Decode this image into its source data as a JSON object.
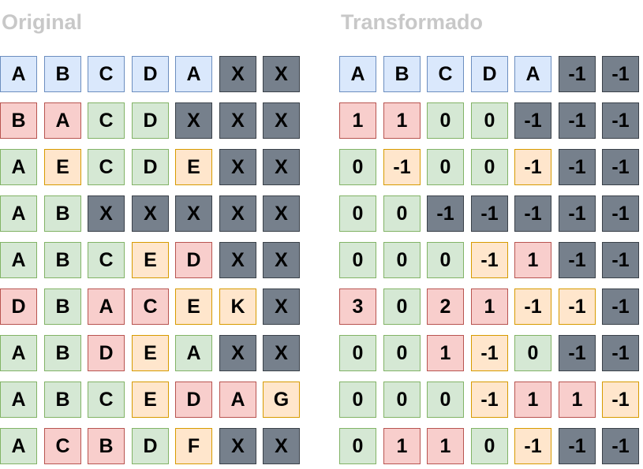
{
  "colors": {
    "blue": "#dae8fc",
    "red": "#f8cecc",
    "green": "#d5e8d4",
    "orange": "#ffe6cc",
    "gray": "#76808c",
    "title": "#c8c8c8"
  },
  "panels": [
    {
      "title": "Original",
      "rows": [
        [
          [
            "A",
            "blue"
          ],
          [
            "B",
            "blue"
          ],
          [
            "C",
            "blue"
          ],
          [
            "D",
            "blue"
          ],
          [
            "A",
            "blue"
          ],
          [
            "X",
            "gray"
          ],
          [
            "X",
            "gray"
          ]
        ],
        [
          [
            "B",
            "red"
          ],
          [
            "A",
            "red"
          ],
          [
            "C",
            "green"
          ],
          [
            "D",
            "green"
          ],
          [
            "X",
            "gray"
          ],
          [
            "X",
            "gray"
          ],
          [
            "X",
            "gray"
          ]
        ],
        [
          [
            "A",
            "green"
          ],
          [
            "E",
            "orange"
          ],
          [
            "C",
            "green"
          ],
          [
            "D",
            "green"
          ],
          [
            "E",
            "orange"
          ],
          [
            "X",
            "gray"
          ],
          [
            "X",
            "gray"
          ]
        ],
        [
          [
            "A",
            "green"
          ],
          [
            "B",
            "green"
          ],
          [
            "X",
            "gray"
          ],
          [
            "X",
            "gray"
          ],
          [
            "X",
            "gray"
          ],
          [
            "X",
            "gray"
          ],
          [
            "X",
            "gray"
          ]
        ],
        [
          [
            "A",
            "green"
          ],
          [
            "B",
            "green"
          ],
          [
            "C",
            "green"
          ],
          [
            "E",
            "orange"
          ],
          [
            "D",
            "red"
          ],
          [
            "X",
            "gray"
          ],
          [
            "X",
            "gray"
          ]
        ],
        [
          [
            "D",
            "red"
          ],
          [
            "B",
            "green"
          ],
          [
            "A",
            "red"
          ],
          [
            "C",
            "red"
          ],
          [
            "E",
            "orange"
          ],
          [
            "K",
            "orange"
          ],
          [
            "X",
            "gray"
          ]
        ],
        [
          [
            "A",
            "green"
          ],
          [
            "B",
            "green"
          ],
          [
            "D",
            "red"
          ],
          [
            "E",
            "orange"
          ],
          [
            "A",
            "green"
          ],
          [
            "X",
            "gray"
          ],
          [
            "X",
            "gray"
          ]
        ],
        [
          [
            "A",
            "green"
          ],
          [
            "B",
            "green"
          ],
          [
            "C",
            "green"
          ],
          [
            "E",
            "orange"
          ],
          [
            "D",
            "red"
          ],
          [
            "A",
            "red"
          ],
          [
            "G",
            "orange"
          ]
        ],
        [
          [
            "A",
            "green"
          ],
          [
            "C",
            "red"
          ],
          [
            "B",
            "red"
          ],
          [
            "D",
            "green"
          ],
          [
            "F",
            "orange"
          ],
          [
            "X",
            "gray"
          ],
          [
            "X",
            "gray"
          ]
        ]
      ]
    },
    {
      "title": "Transformado",
      "rows": [
        [
          [
            "A",
            "blue"
          ],
          [
            "B",
            "blue"
          ],
          [
            "C",
            "blue"
          ],
          [
            "D",
            "blue"
          ],
          [
            "A",
            "blue"
          ],
          [
            "-1",
            "gray"
          ],
          [
            "-1",
            "gray"
          ]
        ],
        [
          [
            "1",
            "red"
          ],
          [
            "1",
            "red"
          ],
          [
            "0",
            "green"
          ],
          [
            "0",
            "green"
          ],
          [
            "-1",
            "gray"
          ],
          [
            "-1",
            "gray"
          ],
          [
            "-1",
            "gray"
          ]
        ],
        [
          [
            "0",
            "green"
          ],
          [
            "-1",
            "orange"
          ],
          [
            "0",
            "green"
          ],
          [
            "0",
            "green"
          ],
          [
            "-1",
            "orange"
          ],
          [
            "-1",
            "gray"
          ],
          [
            "-1",
            "gray"
          ]
        ],
        [
          [
            "0",
            "green"
          ],
          [
            "0",
            "green"
          ],
          [
            "-1",
            "gray"
          ],
          [
            "-1",
            "gray"
          ],
          [
            "-1",
            "gray"
          ],
          [
            "-1",
            "gray"
          ],
          [
            "-1",
            "gray"
          ]
        ],
        [
          [
            "0",
            "green"
          ],
          [
            "0",
            "green"
          ],
          [
            "0",
            "green"
          ],
          [
            "-1",
            "orange"
          ],
          [
            "1",
            "red"
          ],
          [
            "-1",
            "gray"
          ],
          [
            "-1",
            "gray"
          ]
        ],
        [
          [
            "3",
            "red"
          ],
          [
            "0",
            "green"
          ],
          [
            "2",
            "red"
          ],
          [
            "1",
            "red"
          ],
          [
            "-1",
            "orange"
          ],
          [
            "-1",
            "orange"
          ],
          [
            "-1",
            "gray"
          ]
        ],
        [
          [
            "0",
            "green"
          ],
          [
            "0",
            "green"
          ],
          [
            "1",
            "red"
          ],
          [
            "-1",
            "orange"
          ],
          [
            "0",
            "green"
          ],
          [
            "-1",
            "gray"
          ],
          [
            "-1",
            "gray"
          ]
        ],
        [
          [
            "0",
            "green"
          ],
          [
            "0",
            "green"
          ],
          [
            "0",
            "green"
          ],
          [
            "-1",
            "orange"
          ],
          [
            "1",
            "red"
          ],
          [
            "1",
            "red"
          ],
          [
            "-1",
            "orange"
          ]
        ],
        [
          [
            "0",
            "green"
          ],
          [
            "1",
            "red"
          ],
          [
            "1",
            "red"
          ],
          [
            "0",
            "green"
          ],
          [
            "-1",
            "orange"
          ],
          [
            "-1",
            "gray"
          ],
          [
            "-1",
            "gray"
          ]
        ]
      ]
    }
  ]
}
